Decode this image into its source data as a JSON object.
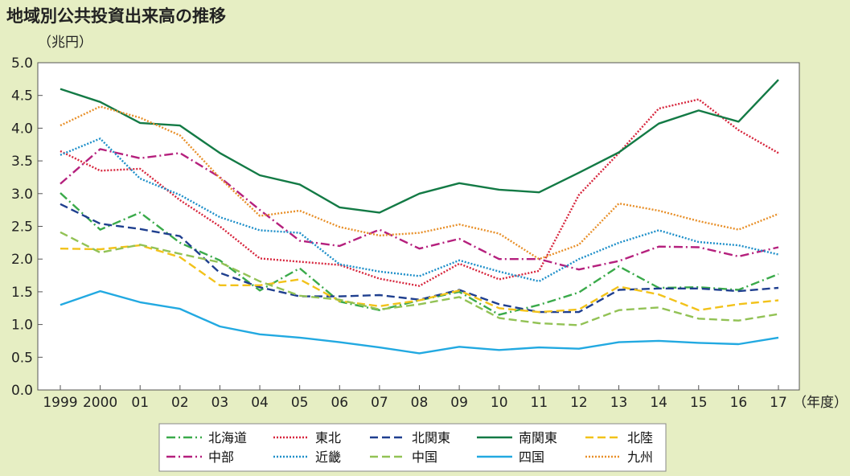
{
  "title": "地域別公共投資出来高の推移",
  "chart_data": {
    "type": "line",
    "title": "地域別公共投資出来高の推移",
    "y_unit_label": "（兆円）",
    "x_unit_label": "（年度）",
    "categories": [
      "1999",
      "2000",
      "01",
      "02",
      "03",
      "04",
      "05",
      "06",
      "07",
      "08",
      "09",
      "10",
      "11",
      "12",
      "13",
      "14",
      "15",
      "16",
      "17"
    ],
    "y_ticks": [
      "0.0",
      "0.5",
      "1.0",
      "1.5",
      "2.0",
      "2.5",
      "3.0",
      "3.5",
      "4.0",
      "4.5",
      "5.0"
    ],
    "ylim": [
      0,
      5.0
    ],
    "grid": false,
    "legend_position": "bottom",
    "series": [
      {
        "name": "北海道",
        "color": "#3aaa4a",
        "dash": "dashdot",
        "values": [
          3.01,
          2.45,
          2.71,
          2.25,
          1.98,
          1.52,
          1.86,
          1.35,
          1.22,
          1.37,
          1.5,
          1.15,
          1.3,
          1.49,
          1.89,
          1.56,
          1.57,
          1.53,
          1.77
        ]
      },
      {
        "name": "東北",
        "color": "#d7263d",
        "dash": "dot",
        "values": [
          3.65,
          3.35,
          3.38,
          2.9,
          2.5,
          2.01,
          1.96,
          1.91,
          1.7,
          1.59,
          1.93,
          1.69,
          1.82,
          2.98,
          3.62,
          4.3,
          4.44,
          3.97,
          3.62
        ]
      },
      {
        "name": "北関東",
        "color": "#1f3f8f",
        "dash": "dash",
        "values": [
          2.84,
          2.54,
          2.46,
          2.35,
          1.79,
          1.57,
          1.43,
          1.43,
          1.45,
          1.38,
          1.53,
          1.31,
          1.19,
          1.19,
          1.53,
          1.55,
          1.55,
          1.51,
          1.56
        ]
      },
      {
        "name": "南関東",
        "color": "#137a45",
        "dash": "solid",
        "values": [
          4.6,
          4.4,
          4.08,
          4.04,
          3.62,
          3.28,
          3.14,
          2.79,
          2.71,
          3.0,
          3.16,
          3.06,
          3.02,
          3.32,
          3.63,
          4.07,
          4.27,
          4.1,
          4.74
        ]
      },
      {
        "name": "北陸",
        "color": "#f2c21a",
        "dash": "dash",
        "values": [
          2.16,
          2.15,
          2.21,
          2.03,
          1.6,
          1.6,
          1.69,
          1.36,
          1.28,
          1.37,
          1.52,
          1.25,
          1.19,
          1.23,
          1.58,
          1.46,
          1.22,
          1.31,
          1.37
        ]
      },
      {
        "name": "中部",
        "color": "#b5207d",
        "dash": "dashdot",
        "values": [
          3.15,
          3.68,
          3.54,
          3.62,
          3.25,
          2.75,
          2.28,
          2.2,
          2.45,
          2.16,
          2.31,
          2.0,
          2.0,
          1.84,
          1.97,
          2.19,
          2.18,
          2.04,
          2.18
        ]
      },
      {
        "name": "近畿",
        "color": "#1e8fc9",
        "dash": "dot",
        "values": [
          3.59,
          3.84,
          3.23,
          2.98,
          2.64,
          2.44,
          2.4,
          1.92,
          1.81,
          1.74,
          1.98,
          1.81,
          1.66,
          2.0,
          2.25,
          2.44,
          2.26,
          2.21,
          2.07
        ]
      },
      {
        "name": "中国",
        "color": "#92c255",
        "dash": "dash",
        "values": [
          2.41,
          2.1,
          2.22,
          2.08,
          1.95,
          1.66,
          1.44,
          1.38,
          1.23,
          1.31,
          1.42,
          1.1,
          1.02,
          0.99,
          1.22,
          1.26,
          1.09,
          1.06,
          1.16
        ]
      },
      {
        "name": "四国",
        "color": "#22a9e1",
        "dash": "solid",
        "values": [
          1.3,
          1.51,
          1.34,
          1.24,
          0.97,
          0.85,
          0.8,
          0.73,
          0.65,
          0.56,
          0.66,
          0.61,
          0.65,
          0.63,
          0.73,
          0.75,
          0.72,
          0.7,
          0.8
        ]
      },
      {
        "name": "九州",
        "color": "#e8902a",
        "dash": "dot",
        "values": [
          4.04,
          4.33,
          4.16,
          3.89,
          3.24,
          2.66,
          2.74,
          2.49,
          2.36,
          2.4,
          2.53,
          2.39,
          2.0,
          2.22,
          2.85,
          2.74,
          2.58,
          2.45,
          2.69
        ]
      }
    ]
  }
}
